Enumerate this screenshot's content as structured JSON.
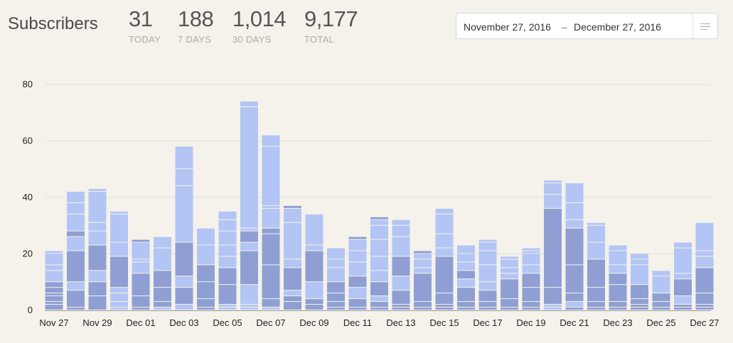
{
  "header": {
    "title": "Subscribers",
    "stats": [
      {
        "value": "31",
        "label": "TODAY"
      },
      {
        "value": "188",
        "label": "7 DAYS"
      },
      {
        "value": "1,014",
        "label": "30 DAYS"
      },
      {
        "value": "9,177",
        "label": "TOTAL"
      }
    ]
  },
  "date_range": {
    "from": "November 27, 2016",
    "separator": "–",
    "to": "December 27, 2016",
    "menu_icon": "menu-lines-icon"
  },
  "colors": {
    "background": "#f5f2eb",
    "bar_dark": "#8f9fd3",
    "bar_light": "#b3c5f4",
    "gridline": "#e3e0d9",
    "axis": "#999999"
  },
  "chart_data": {
    "type": "bar",
    "stacked": true,
    "ylim": [
      0,
      80
    ],
    "yticks": [
      0,
      20,
      40,
      60,
      80
    ],
    "grid": true,
    "categories": [
      "Nov 27",
      "Nov 28",
      "Nov 29",
      "Nov 30",
      "Dec 01",
      "Dec 02",
      "Dec 03",
      "Dec 04",
      "Dec 05",
      "Dec 06",
      "Dec 07",
      "Dec 08",
      "Dec 09",
      "Dec 10",
      "Dec 11",
      "Dec 12",
      "Dec 13",
      "Dec 14",
      "Dec 15",
      "Dec 16",
      "Dec 17",
      "Dec 18",
      "Dec 19",
      "Dec 20",
      "Dec 21",
      "Dec 22",
      "Dec 23",
      "Dec 24",
      "Dec 25",
      "Dec 26",
      "Dec 27"
    ],
    "tick_labels": [
      "Nov 27",
      "Nov 29",
      "Dec 01",
      "Dec 03",
      "Dec 05",
      "Dec 07",
      "Dec 09",
      "Dec 11",
      "Dec 13",
      "Dec 15",
      "Dec 17",
      "Dec 19",
      "Dec 21",
      "Dec 23",
      "Dec 25",
      "Dec 27"
    ],
    "totals": [
      21,
      42,
      43,
      35,
      25,
      26,
      58,
      29,
      35,
      74,
      62,
      37,
      34,
      22,
      26,
      33,
      32,
      21,
      36,
      23,
      25,
      19,
      22,
      46,
      45,
      31,
      23,
      20,
      14,
      24,
      31
    ],
    "segments": [
      [
        [
          2,
          "d"
        ],
        [
          1,
          "d"
        ],
        [
          2,
          "d"
        ],
        [
          1,
          "d"
        ],
        [
          2,
          "d"
        ],
        [
          2,
          "d"
        ],
        [
          4,
          "l"
        ],
        [
          2,
          "l"
        ],
        [
          4,
          "l"
        ],
        [
          1,
          "l"
        ]
      ],
      [
        [
          1,
          "d"
        ],
        [
          6,
          "d"
        ],
        [
          3,
          "l"
        ],
        [
          11,
          "d"
        ],
        [
          5,
          "l"
        ],
        [
          2,
          "d"
        ],
        [
          6,
          "l"
        ],
        [
          4,
          "l"
        ],
        [
          4,
          "l"
        ]
      ],
      [
        [
          5,
          "d"
        ],
        [
          5,
          "d"
        ],
        [
          4,
          "l"
        ],
        [
          9,
          "d"
        ],
        [
          5,
          "l"
        ],
        [
          3,
          "l"
        ],
        [
          11,
          "l"
        ],
        [
          1,
          "l"
        ]
      ],
      [
        [
          1,
          "l"
        ],
        [
          2,
          "l"
        ],
        [
          3,
          "l"
        ],
        [
          2,
          "l"
        ],
        [
          11,
          "d"
        ],
        [
          5,
          "l"
        ],
        [
          10,
          "l"
        ],
        [
          1,
          "l"
        ]
      ],
      [
        [
          1,
          "d"
        ],
        [
          4,
          "d"
        ],
        [
          8,
          "d"
        ],
        [
          4,
          "l"
        ],
        [
          1,
          "l"
        ],
        [
          6,
          "l"
        ],
        [
          1,
          "d"
        ]
      ],
      [
        [
          1,
          "l"
        ],
        [
          2,
          "d"
        ],
        [
          5,
          "d"
        ],
        [
          6,
          "d"
        ],
        [
          8,
          "l"
        ],
        [
          4,
          "l"
        ]
      ],
      [
        [
          2,
          "l"
        ],
        [
          6,
          "d"
        ],
        [
          4,
          "l"
        ],
        [
          12,
          "d"
        ],
        [
          20,
          "l"
        ],
        [
          6,
          "l"
        ],
        [
          8,
          "l"
        ]
      ],
      [
        [
          1,
          "d"
        ],
        [
          3,
          "d"
        ],
        [
          6,
          "d"
        ],
        [
          6,
          "d"
        ],
        [
          7,
          "l"
        ],
        [
          6,
          "l"
        ]
      ],
      [
        [
          1,
          "l"
        ],
        [
          1,
          "l"
        ],
        [
          7,
          "d"
        ],
        [
          6,
          "d"
        ],
        [
          4,
          "l"
        ],
        [
          4,
          "l"
        ],
        [
          5,
          "l"
        ],
        [
          4,
          "l"
        ],
        [
          3,
          "l"
        ]
      ],
      [
        [
          1,
          "l"
        ],
        [
          1,
          "l"
        ],
        [
          7,
          "l"
        ],
        [
          12,
          "d"
        ],
        [
          3,
          "l"
        ],
        [
          4,
          "d"
        ],
        [
          1,
          "l"
        ],
        [
          43,
          "l"
        ],
        [
          2,
          "l"
        ]
      ],
      [
        [
          1,
          "l"
        ],
        [
          3,
          "d"
        ],
        [
          12,
          "d"
        ],
        [
          11,
          "d"
        ],
        [
          2,
          "d"
        ],
        [
          7,
          "l"
        ],
        [
          1,
          "l"
        ],
        [
          21,
          "l"
        ],
        [
          4,
          "l"
        ]
      ],
      [
        [
          3,
          "d"
        ],
        [
          2,
          "d"
        ],
        [
          2,
          "l"
        ],
        [
          8,
          "d"
        ],
        [
          3,
          "l"
        ],
        [
          13,
          "l"
        ],
        [
          5,
          "l"
        ],
        [
          1,
          "d"
        ]
      ],
      [
        [
          2,
          "d"
        ],
        [
          2,
          "d"
        ],
        [
          6,
          "l"
        ],
        [
          11,
          "d"
        ],
        [
          2,
          "l"
        ],
        [
          11,
          "l"
        ]
      ],
      [
        [
          1,
          "d"
        ],
        [
          2,
          "d"
        ],
        [
          3,
          "d"
        ],
        [
          4,
          "d"
        ],
        [
          5,
          "l"
        ],
        [
          3,
          "l"
        ],
        [
          4,
          "l"
        ]
      ],
      [
        [
          1,
          "d"
        ],
        [
          3,
          "d"
        ],
        [
          4,
          "l"
        ],
        [
          4,
          "d"
        ],
        [
          5,
          "l"
        ],
        [
          4,
          "l"
        ],
        [
          4,
          "l"
        ],
        [
          1,
          "d"
        ]
      ],
      [
        [
          1,
          "d"
        ],
        [
          2,
          "d"
        ],
        [
          2,
          "l"
        ],
        [
          5,
          "d"
        ],
        [
          4,
          "l"
        ],
        [
          5,
          "l"
        ],
        [
          6,
          "l"
        ],
        [
          5,
          "l"
        ],
        [
          2,
          "l"
        ],
        [
          1,
          "d"
        ]
      ],
      [
        [
          1,
          "d"
        ],
        [
          1,
          "d"
        ],
        [
          5,
          "d"
        ],
        [
          5,
          "l"
        ],
        [
          7,
          "d"
        ],
        [
          7,
          "l"
        ],
        [
          4,
          "l"
        ],
        [
          2,
          "l"
        ]
      ],
      [
        [
          1,
          "d"
        ],
        [
          2,
          "d"
        ],
        [
          10,
          "d"
        ],
        [
          2,
          "l"
        ],
        [
          3,
          "l"
        ],
        [
          2,
          "l"
        ],
        [
          1,
          "d"
        ]
      ],
      [
        [
          1,
          "d"
        ],
        [
          1,
          "d"
        ],
        [
          4,
          "d"
        ],
        [
          13,
          "d"
        ],
        [
          3,
          "l"
        ],
        [
          5,
          "l"
        ],
        [
          7,
          "l"
        ],
        [
          2,
          "l"
        ]
      ],
      [
        [
          1,
          "d"
        ],
        [
          2,
          "d"
        ],
        [
          5,
          "d"
        ],
        [
          3,
          "l"
        ],
        [
          3,
          "d"
        ],
        [
          3,
          "l"
        ],
        [
          3,
          "l"
        ],
        [
          3,
          "l"
        ]
      ],
      [
        [
          1,
          "d"
        ],
        [
          2,
          "d"
        ],
        [
          4,
          "d"
        ],
        [
          3,
          "l"
        ],
        [
          6,
          "l"
        ],
        [
          5,
          "l"
        ],
        [
          3,
          "l"
        ],
        [
          1,
          "l"
        ]
      ],
      [
        [
          1,
          "d"
        ],
        [
          3,
          "d"
        ],
        [
          7,
          "d"
        ],
        [
          2,
          "l"
        ],
        [
          2,
          "l"
        ],
        [
          3,
          "l"
        ],
        [
          1,
          "l"
        ]
      ],
      [
        [
          1,
          "d"
        ],
        [
          2,
          "d"
        ],
        [
          5,
          "d"
        ],
        [
          5,
          "d"
        ],
        [
          3,
          "l"
        ],
        [
          4,
          "l"
        ],
        [
          1,
          "l"
        ],
        [
          1,
          "l"
        ]
      ],
      [
        [
          1,
          "l"
        ],
        [
          1,
          "l"
        ],
        [
          6,
          "d"
        ],
        [
          28,
          "d"
        ],
        [
          5,
          "l"
        ],
        [
          4,
          "l"
        ],
        [
          1,
          "l"
        ]
      ],
      [
        [
          1,
          "d"
        ],
        [
          2,
          "l"
        ],
        [
          3,
          "d"
        ],
        [
          10,
          "d"
        ],
        [
          13,
          "d"
        ],
        [
          3,
          "l"
        ],
        [
          6,
          "l"
        ],
        [
          7,
          "l"
        ]
      ],
      [
        [
          1,
          "d"
        ],
        [
          2,
          "d"
        ],
        [
          5,
          "d"
        ],
        [
          10,
          "d"
        ],
        [
          6,
          "l"
        ],
        [
          6,
          "l"
        ],
        [
          1,
          "l"
        ]
      ],
      [
        [
          1,
          "d"
        ],
        [
          2,
          "d"
        ],
        [
          6,
          "d"
        ],
        [
          4,
          "d"
        ],
        [
          3,
          "l"
        ],
        [
          5,
          "l"
        ],
        [
          2,
          "l"
        ]
      ],
      [
        [
          1,
          "d"
        ],
        [
          1,
          "d"
        ],
        [
          2,
          "d"
        ],
        [
          5,
          "d"
        ],
        [
          7,
          "l"
        ],
        [
          2,
          "l"
        ],
        [
          2,
          "l"
        ]
      ],
      [
        [
          1,
          "d"
        ],
        [
          2,
          "d"
        ],
        [
          3,
          "d"
        ],
        [
          6,
          "l"
        ],
        [
          2,
          "l"
        ]
      ],
      [
        [
          1,
          "d"
        ],
        [
          1,
          "d"
        ],
        [
          3,
          "l"
        ],
        [
          6,
          "d"
        ],
        [
          2,
          "l"
        ],
        [
          9,
          "l"
        ],
        [
          2,
          "l"
        ]
      ],
      [
        [
          1,
          "d"
        ],
        [
          1,
          "d"
        ],
        [
          4,
          "d"
        ],
        [
          9,
          "d"
        ],
        [
          4,
          "l"
        ],
        [
          2,
          "l"
        ],
        [
          10,
          "l"
        ]
      ]
    ]
  }
}
